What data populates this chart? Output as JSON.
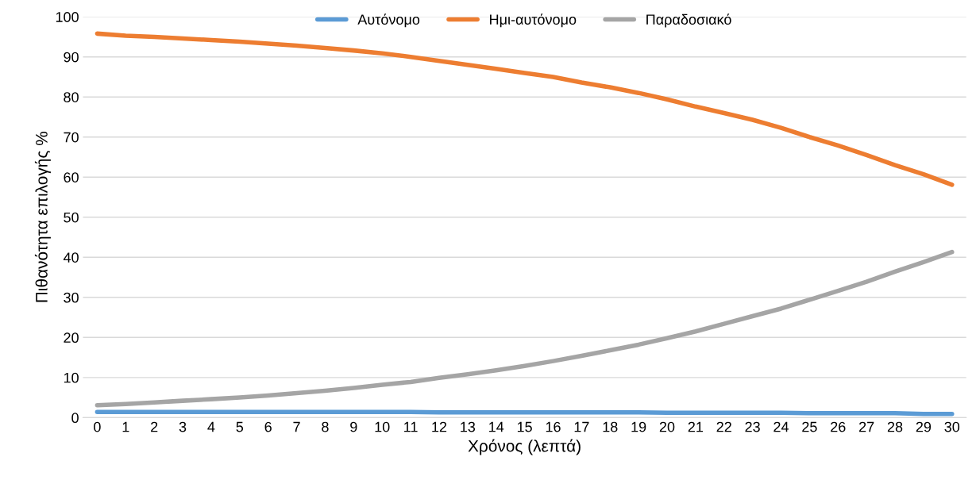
{
  "chart_data": {
    "type": "line",
    "xlabel": "Χρόνος (λεπτά)",
    "ylabel": "Πιθανότητα επιλογής %",
    "categories": [
      "0",
      "1",
      "2",
      "3",
      "4",
      "5",
      "6",
      "7",
      "8",
      "9",
      "10",
      "11",
      "12",
      "13",
      "14",
      "15",
      "16",
      "17",
      "18",
      "19",
      "20",
      "21",
      "22",
      "23",
      "24",
      "25",
      "26",
      "27",
      "28",
      "29",
      "30"
    ],
    "series": [
      {
        "name": "Αυτόνομο",
        "color": "#5b9bd5",
        "values": [
          1.4,
          1.4,
          1.4,
          1.4,
          1.4,
          1.4,
          1.4,
          1.4,
          1.4,
          1.4,
          1.4,
          1.4,
          1.3,
          1.3,
          1.3,
          1.3,
          1.3,
          1.3,
          1.3,
          1.3,
          1.2,
          1.2,
          1.2,
          1.2,
          1.2,
          1.1,
          1.1,
          1.1,
          1.1,
          0.9,
          0.9
        ]
      },
      {
        "name": "Ημι-αυτόνομο",
        "color": "#ed7d31",
        "values": [
          95.8,
          95.3,
          95.0,
          94.6,
          94.2,
          93.8,
          93.3,
          92.8,
          92.2,
          91.6,
          90.9,
          90.0,
          89.0,
          88.0,
          87.0,
          86.0,
          85.0,
          83.6,
          82.4,
          81.0,
          79.4,
          77.6,
          76.0,
          74.3,
          72.3,
          70.0,
          67.9,
          65.5,
          63.0,
          60.7,
          58.1
        ]
      },
      {
        "name": "Παραδοσιακό",
        "color": "#a5a5a5",
        "values": [
          3.1,
          3.4,
          3.8,
          4.2,
          4.6,
          5.0,
          5.5,
          6.1,
          6.7,
          7.4,
          8.2,
          8.9,
          9.9,
          10.8,
          11.8,
          12.9,
          14.1,
          15.4,
          16.8,
          18.2,
          19.8,
          21.5,
          23.4,
          25.3,
          27.2,
          29.4,
          31.6,
          33.9,
          36.4,
          38.8,
          41.3
        ]
      }
    ],
    "ylim": [
      0,
      100
    ],
    "yticks": [
      0,
      10,
      20,
      30,
      40,
      50,
      60,
      70,
      80,
      90,
      100
    ],
    "grid": "y",
    "legend": "top",
    "marker": "none",
    "line_style": "solid"
  }
}
